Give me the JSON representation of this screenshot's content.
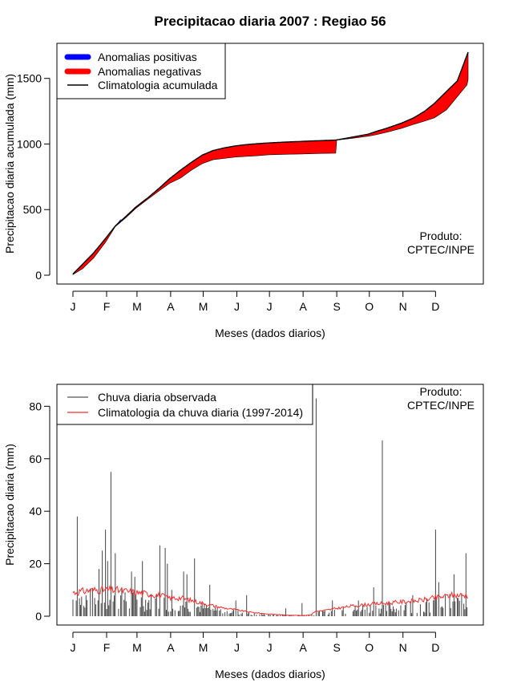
{
  "title": "Precipitacao diaria 2007 : Regiao 56",
  "product": {
    "line1": "Produto:",
    "line2": "CPTEC/INPE"
  },
  "chart_data": [
    {
      "type": "area",
      "id": "accumulated",
      "xlabel": "Meses (dados diarios)",
      "ylabel": "Precipitacao diaria acumulada (mm)",
      "xlim": [
        1,
        365
      ],
      "ylim": [
        0,
        1700
      ],
      "month_labels": [
        "J",
        "F",
        "M",
        "A",
        "M",
        "J",
        "J",
        "A",
        "S",
        "O",
        "N",
        "D"
      ],
      "month_start_days": [
        1,
        32,
        60,
        91,
        121,
        152,
        182,
        213,
        244,
        274,
        305,
        335
      ],
      "y_ticks": [
        0,
        500,
        1000,
        1500
      ],
      "legend": [
        {
          "label": "Anomalias positivas",
          "color": "#0000ff"
        },
        {
          "label": "Anomalias negativas",
          "color": "#ff0000"
        },
        {
          "label": "Climatologia acumulada",
          "color": "#000000"
        }
      ],
      "climatology_accumulated": {
        "days": [
          1,
          10,
          20,
          31,
          40,
          50,
          59,
          70,
          80,
          90,
          100,
          110,
          120,
          130,
          140,
          150,
          160,
          170,
          181,
          190,
          200,
          212,
          220,
          230,
          243,
          250,
          260,
          273,
          280,
          290,
          304,
          315,
          325,
          334,
          345,
          355,
          365
        ],
        "values": [
          10,
          85,
          170,
          280,
          375,
          450,
          520,
          590,
          660,
          735,
          800,
          860,
          915,
          950,
          970,
          985,
          995,
          1002,
          1008,
          1012,
          1016,
          1020,
          1023,
          1026,
          1030,
          1040,
          1055,
          1075,
          1095,
          1120,
          1160,
          1200,
          1250,
          1310,
          1400,
          1480,
          1700
        ]
      },
      "observed_accumulated": {
        "days": [
          1,
          10,
          20,
          31,
          40,
          50,
          59,
          70,
          80,
          90,
          100,
          110,
          120,
          130,
          140,
          150,
          160,
          170,
          181,
          190,
          200,
          212,
          220,
          230,
          243,
          244,
          250,
          260,
          273,
          280,
          290,
          304,
          315,
          325,
          334,
          345,
          355,
          364,
          365
        ],
        "values": [
          5,
          50,
          130,
          250,
          370,
          440,
          510,
          580,
          640,
          700,
          740,
          800,
          850,
          880,
          890,
          900,
          905,
          910,
          918,
          920,
          922,
          924,
          926,
          928,
          930,
          1030,
          1035,
          1045,
          1060,
          1070,
          1090,
          1120,
          1150,
          1175,
          1200,
          1260,
          1360,
          1450,
          1490
        ]
      }
    },
    {
      "type": "bar",
      "id": "daily",
      "xlabel": "Meses (dados diarios)",
      "ylabel": "Precipitacao diaria (mm)",
      "xlim": [
        1,
        365
      ],
      "ylim": [
        0,
        85
      ],
      "y_ticks": [
        0,
        20,
        40,
        60,
        80
      ],
      "month_labels": [
        "J",
        "F",
        "M",
        "A",
        "M",
        "J",
        "J",
        "A",
        "S",
        "O",
        "N",
        "D"
      ],
      "month_start_days": [
        1,
        32,
        60,
        91,
        121,
        152,
        182,
        213,
        244,
        274,
        305,
        335
      ],
      "legend": [
        {
          "label": "Chuva diaria observada",
          "color": "#555555"
        },
        {
          "label": "Climatologia da chuva diaria (1997-2014)",
          "color": "#ff2a2a"
        }
      ],
      "observed_peaks": [
        {
          "day": 5,
          "value": 38
        },
        {
          "day": 13,
          "value": 8
        },
        {
          "day": 25,
          "value": 18
        },
        {
          "day": 28,
          "value": 25
        },
        {
          "day": 31,
          "value": 33
        },
        {
          "day": 33,
          "value": 21
        },
        {
          "day": 36,
          "value": 55
        },
        {
          "day": 40,
          "value": 24
        },
        {
          "day": 55,
          "value": 17
        },
        {
          "day": 58,
          "value": 15
        },
        {
          "day": 65,
          "value": 21
        },
        {
          "day": 81,
          "value": 27
        },
        {
          "day": 86,
          "value": 26
        },
        {
          "day": 88,
          "value": 20
        },
        {
          "day": 92,
          "value": 10
        },
        {
          "day": 103,
          "value": 17
        },
        {
          "day": 106,
          "value": 16
        },
        {
          "day": 113,
          "value": 22
        },
        {
          "day": 127,
          "value": 12
        },
        {
          "day": 151,
          "value": 6
        },
        {
          "day": 161,
          "value": 8
        },
        {
          "day": 197,
          "value": 3
        },
        {
          "day": 212,
          "value": 5
        },
        {
          "day": 225,
          "value": 83
        },
        {
          "day": 240,
          "value": 6
        },
        {
          "day": 264,
          "value": 6
        },
        {
          "day": 278,
          "value": 11
        },
        {
          "day": 286,
          "value": 67
        },
        {
          "day": 314,
          "value": 8
        },
        {
          "day": 335,
          "value": 33
        },
        {
          "day": 338,
          "value": 13
        },
        {
          "day": 352,
          "value": 16
        },
        {
          "day": 363,
          "value": 24
        }
      ],
      "climatology_daily_anchors": {
        "days": [
          1,
          20,
          40,
          60,
          80,
          90,
          100,
          110,
          120,
          135,
          150,
          165,
          182,
          200,
          213,
          220,
          225,
          230,
          244,
          260,
          274,
          290,
          305,
          320,
          335,
          350,
          365
        ],
        "values": [
          9,
          10,
          10,
          9,
          8,
          7,
          7,
          6,
          5,
          3.5,
          2.5,
          1.5,
          0.8,
          0.4,
          0.3,
          0.5,
          2,
          2,
          3,
          4,
          4.5,
          5,
          5.5,
          6,
          7,
          8,
          8
        ]
      }
    }
  ]
}
